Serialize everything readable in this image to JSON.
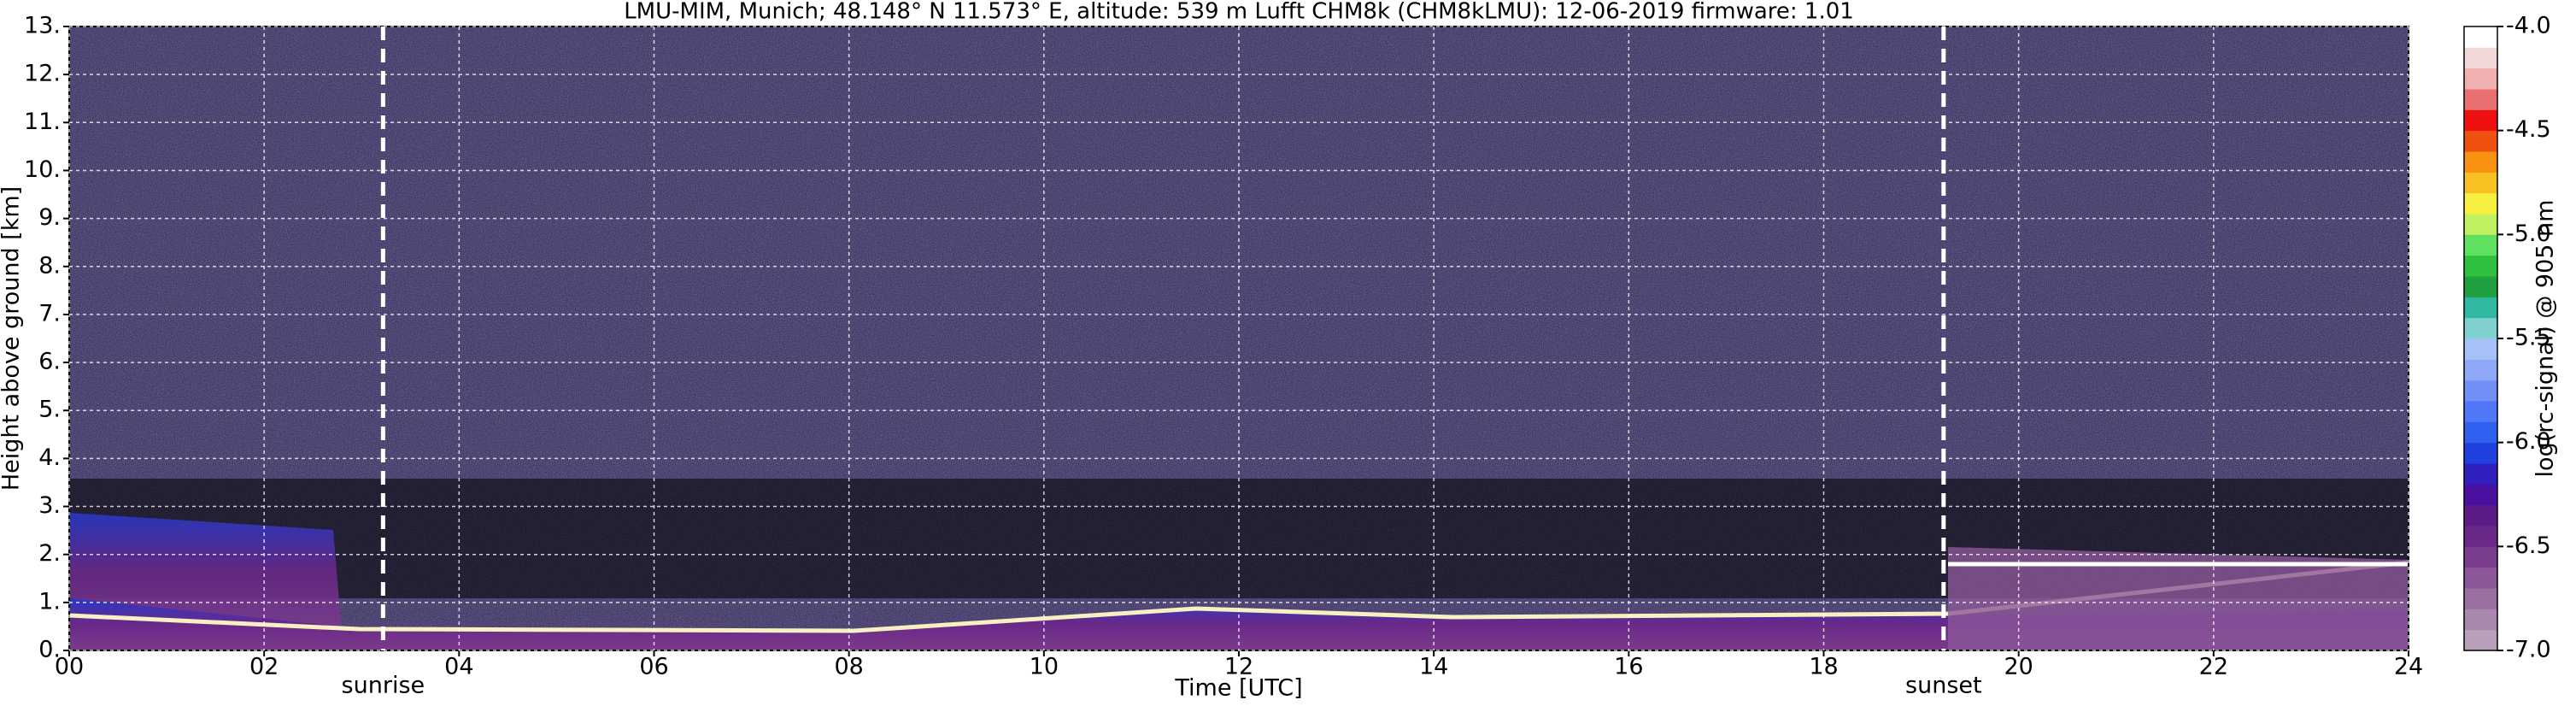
{
  "chart_data": {
    "type": "heatmap",
    "title": "LMU-MIM, Munich; 48.148° N 11.573° E, altitude: 539 m    Lufft CHM8k (CHM8kLMU): 12-06-2019    firmware: 1.01",
    "xlabel": "Time [UTC]",
    "ylabel": "Height above ground [km]",
    "xlim": [
      0,
      24
    ],
    "xticks": [
      {
        "value": 0,
        "label": "00"
      },
      {
        "value": 2,
        "label": "02"
      },
      {
        "value": 4,
        "label": "04"
      },
      {
        "value": 6,
        "label": "06"
      },
      {
        "value": 8,
        "label": "08"
      },
      10,
      12,
      14,
      16,
      18,
      20,
      22,
      24
    ],
    "ylim": [
      0,
      13
    ],
    "yticks": [
      {
        "value": 0,
        "label": "0."
      },
      {
        "value": 1,
        "label": "1."
      },
      {
        "value": 2,
        "label": "2."
      },
      {
        "value": 3,
        "label": "3."
      },
      {
        "value": 4,
        "label": "4."
      },
      {
        "value": 5,
        "label": "5."
      },
      {
        "value": 6,
        "label": "6."
      },
      {
        "value": 7,
        "label": "7."
      },
      {
        "value": 8,
        "label": "8."
      },
      {
        "value": 9,
        "label": "9."
      },
      {
        "value": 10,
        "label": "10."
      },
      {
        "value": 11,
        "label": "11."
      },
      {
        "value": 12,
        "label": "12."
      },
      {
        "value": 13,
        "label": "13."
      }
    ],
    "grid": true,
    "colorbar_label": "log(rc-signal) @ 905 nm",
    "clim": [
      -7,
      -4
    ],
    "cticks": [
      {
        "value": -7,
        "label": "-7.0"
      },
      {
        "value": -6.5,
        "label": "-6.5"
      },
      {
        "value": -6,
        "label": "-6.0"
      },
      {
        "value": -5.5,
        "label": "-5.5"
      },
      {
        "value": -5,
        "label": "-5.0"
      },
      {
        "value": -4.5,
        "label": "-4.5"
      },
      {
        "value": -4,
        "label": "-4.0"
      }
    ],
    "colormap": [
      "#b8a0b8",
      "#a888ac",
      "#9a70a0",
      "#8c5898",
      "#7a3c8c",
      "#6a2888",
      "#5c1c88",
      "#4a10a0",
      "#3020c0",
      "#2040e0",
      "#3060f0",
      "#5078f8",
      "#7090f8",
      "#90a8f8",
      "#a8c0f8",
      "#80d0d0",
      "#30b8a0",
      "#20a040",
      "#30c040",
      "#60e060",
      "#c0f060",
      "#f8f040",
      "#f8c020",
      "#f89010",
      "#f05010",
      "#f01010",
      "#e87070",
      "#f0b0b0",
      "#f0d8d8",
      "#ffffff"
    ],
    "annotations": [
      {
        "x": 3.22,
        "label": "sunrise"
      },
      {
        "x": 19.23,
        "label": "sunset"
      }
    ]
  }
}
